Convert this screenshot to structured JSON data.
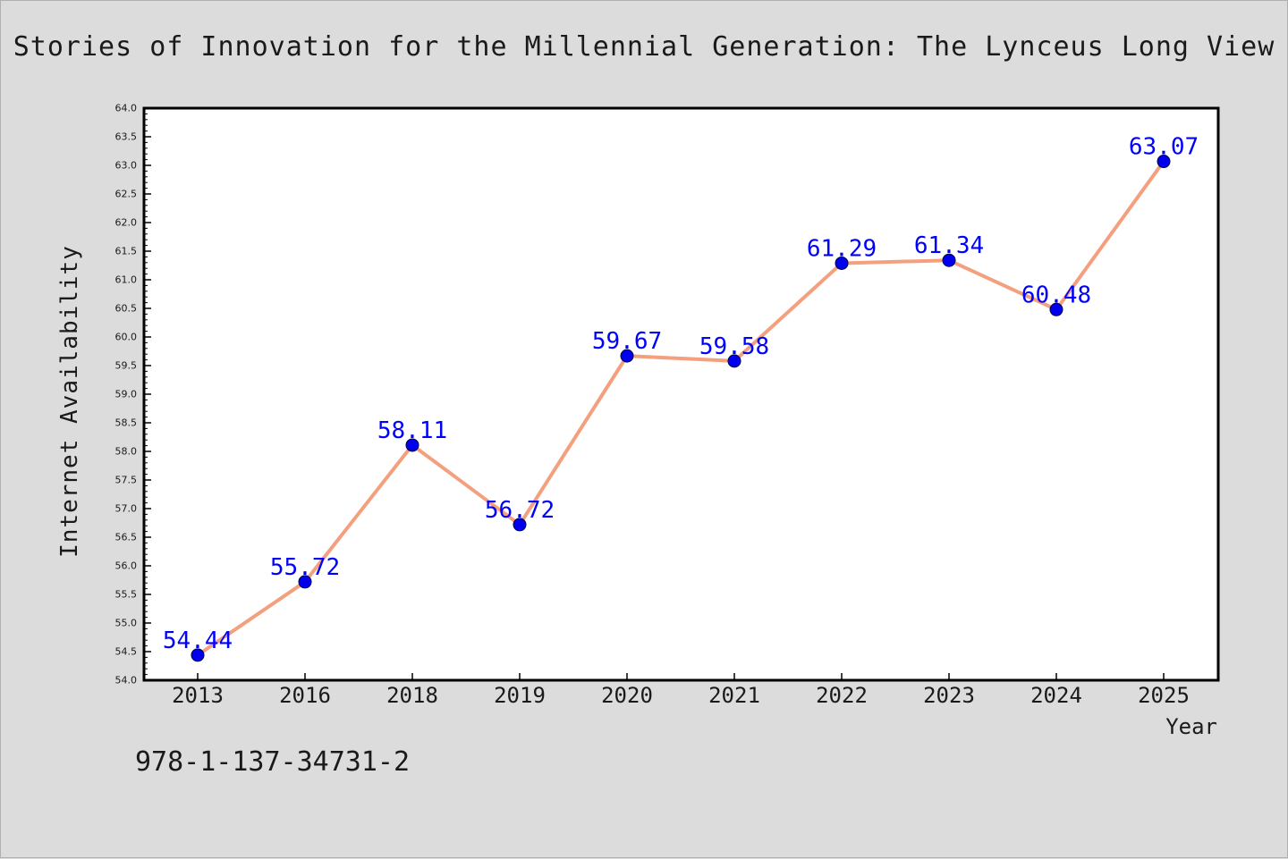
{
  "figure": {
    "title": "Stories of Innovation for the Millennial Generation: The Lynceus Long View",
    "footnote": "978-1-137-34731-2"
  },
  "colors": {
    "background": "#dcdcdc",
    "plot_background": "#ffffff",
    "line": "#f4a07e",
    "marker": "#0000ee",
    "data_label": "#0000ff",
    "axis": "#000000"
  },
  "chart_data": {
    "type": "line",
    "title": "Stories of Innovation for the Millennial Generation: The Lynceus Long View",
    "xlabel": "Year",
    "ylabel": "Internet Availability",
    "categories": [
      "2013",
      "2016",
      "2018",
      "2019",
      "2020",
      "2021",
      "2022",
      "2023",
      "2024",
      "2025"
    ],
    "values": [
      54.44,
      55.72,
      58.11,
      56.72,
      59.67,
      59.58,
      61.29,
      61.34,
      60.48,
      63.07
    ],
    "data_labels": [
      "54.44",
      "55.72",
      "58.11",
      "56.72",
      "59.67",
      "59.58",
      "61.29",
      "61.34",
      "60.48",
      "63.07"
    ],
    "ylim": [
      54.0,
      64.0
    ],
    "yticks": [
      "54.0",
      "54.5",
      "55.0",
      "55.5",
      "56.0",
      "56.5",
      "57.0",
      "57.5",
      "58.0",
      "58.5",
      "59.0",
      "59.5",
      "60.0",
      "60.5",
      "61.0",
      "61.5",
      "62.0",
      "62.5",
      "63.0",
      "63.5",
      "64.0"
    ],
    "grid": false,
    "legend": "none"
  }
}
